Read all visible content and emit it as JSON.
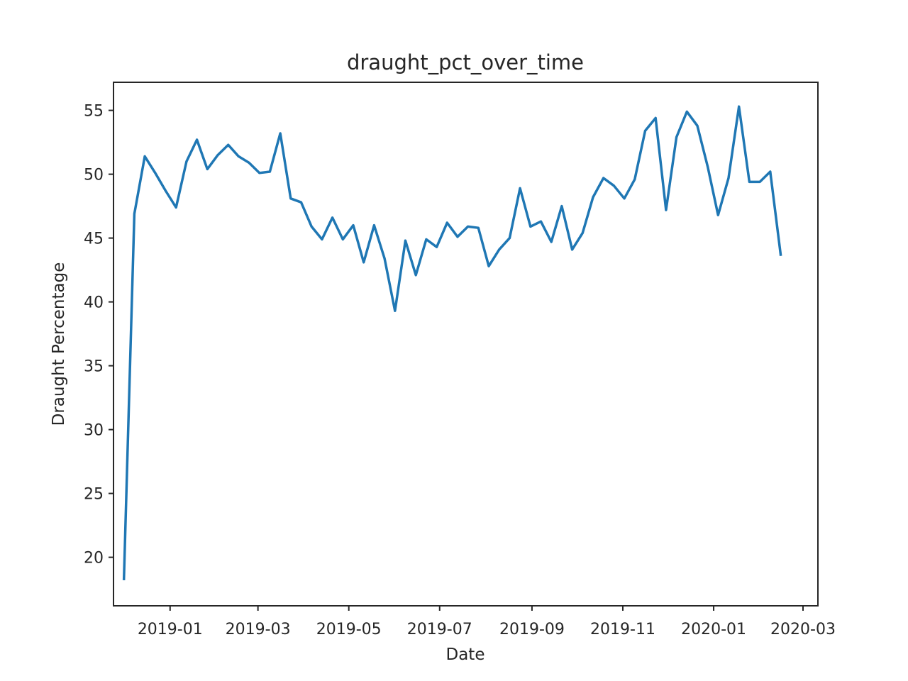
{
  "chart_data": {
    "type": "line",
    "title": "draught_pct_over_time",
    "xlabel": "Date",
    "ylabel": "Draught Percentage",
    "x_axis": "date",
    "xlim": [
      "2018-11-24",
      "2020-03-11"
    ],
    "ylim": [
      16.2,
      57.2
    ],
    "x_ticks": [
      "2019-01",
      "2019-03",
      "2019-05",
      "2019-07",
      "2019-09",
      "2019-11",
      "2020-01",
      "2020-03"
    ],
    "x_tick_dates": [
      "2019-01-01",
      "2019-03-01",
      "2019-05-01",
      "2019-07-01",
      "2019-09-01",
      "2019-11-01",
      "2020-01-01",
      "2020-03-01"
    ],
    "y_ticks": [
      20,
      25,
      30,
      35,
      40,
      45,
      50,
      55
    ],
    "grid": false,
    "legend": "none",
    "color": "#1f77b4",
    "series": [
      {
        "x": [
          "2018-12-01",
          "2018-12-08",
          "2018-12-15",
          "2018-12-22",
          "2018-12-29",
          "2019-01-05",
          "2019-01-12",
          "2019-01-19",
          "2019-01-26",
          "2019-02-02",
          "2019-02-09",
          "2019-02-16",
          "2019-02-23",
          "2019-03-02",
          "2019-03-09",
          "2019-03-16",
          "2019-03-23",
          "2019-03-30",
          "2019-04-06",
          "2019-04-13",
          "2019-04-20",
          "2019-04-27",
          "2019-05-04",
          "2019-05-11",
          "2019-05-18",
          "2019-05-25",
          "2019-06-01",
          "2019-06-08",
          "2019-06-15",
          "2019-06-22",
          "2019-06-29",
          "2019-07-06",
          "2019-07-13",
          "2019-07-20",
          "2019-07-27",
          "2019-08-03",
          "2019-08-10",
          "2019-08-17",
          "2019-08-24",
          "2019-08-31",
          "2019-09-07",
          "2019-09-14",
          "2019-09-21",
          "2019-09-28",
          "2019-10-05",
          "2019-10-12",
          "2019-10-19",
          "2019-10-26",
          "2019-11-02",
          "2019-11-09",
          "2019-11-16",
          "2019-11-23",
          "2019-11-30",
          "2019-12-07",
          "2019-12-14",
          "2019-12-21",
          "2019-12-28",
          "2020-01-04",
          "2020-01-11",
          "2020-01-18",
          "2020-01-25",
          "2020-02-01",
          "2020-02-08",
          "2020-02-15"
        ],
        "values": [
          18.3,
          46.9,
          51.4,
          50.1,
          48.7,
          47.4,
          51.0,
          52.7,
          50.4,
          51.5,
          52.3,
          51.4,
          50.9,
          50.1,
          50.2,
          53.2,
          48.1,
          47.8,
          45.9,
          44.9,
          46.6,
          44.9,
          46.0,
          43.1,
          46.0,
          43.4,
          39.3,
          44.8,
          42.1,
          44.9,
          44.3,
          46.2,
          45.1,
          45.9,
          45.8,
          42.8,
          44.1,
          45.0,
          48.9,
          45.9,
          46.3,
          44.7,
          47.5,
          44.1,
          45.4,
          48.2,
          49.7,
          49.1,
          48.1,
          49.6,
          53.4,
          54.4,
          47.2,
          52.9,
          54.9,
          53.8,
          50.6,
          46.8,
          49.7,
          55.3,
          49.4,
          49.4,
          50.2,
          43.7
        ]
      }
    ]
  }
}
